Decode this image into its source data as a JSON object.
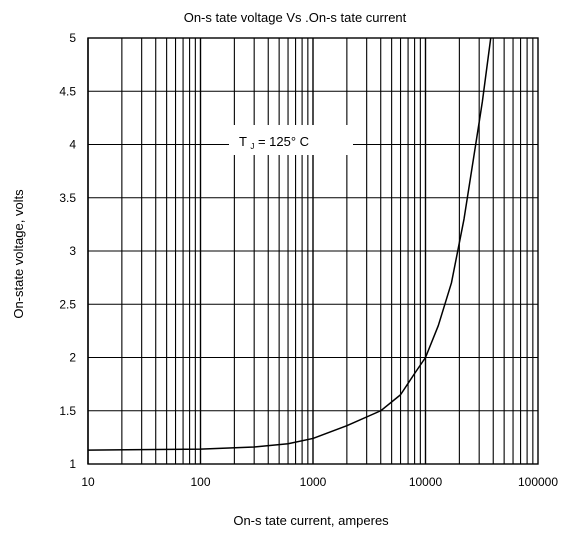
{
  "chart_data": {
    "type": "line",
    "title": "On-s tate voltage  Vs .On-s tate current",
    "xlabel": "On-s tate  current, amperes",
    "ylabel": "On-state voltage, volts",
    "x_scale": "log",
    "xlim": [
      10,
      100000
    ],
    "ylim": [
      1,
      5
    ],
    "x_ticks": [
      10,
      100,
      1000,
      10000,
      100000
    ],
    "x_tick_labels": [
      "10",
      "100",
      "1000",
      "10000",
      "100000"
    ],
    "y_ticks": [
      1,
      1.5,
      2,
      2.5,
      3,
      3.5,
      4,
      4.5,
      5
    ],
    "y_tick_labels": [
      "1",
      "1.5",
      "2",
      "2.5",
      "3",
      "3.5",
      "4",
      "4.5",
      "5"
    ],
    "grid": true,
    "annotation": {
      "main": "T",
      "sub": "J",
      "rest": "= 125°  C"
    },
    "series": [
      {
        "color": "#000000",
        "points": [
          [
            10,
            1.13
          ],
          [
            30,
            1.135
          ],
          [
            100,
            1.14
          ],
          [
            300,
            1.16
          ],
          [
            600,
            1.19
          ],
          [
            1000,
            1.24
          ],
          [
            2000,
            1.36
          ],
          [
            4000,
            1.5
          ],
          [
            6000,
            1.65
          ],
          [
            8000,
            1.85
          ],
          [
            10000,
            2.0
          ],
          [
            13000,
            2.3
          ],
          [
            17000,
            2.7
          ],
          [
            22000,
            3.3
          ],
          [
            27000,
            3.9
          ],
          [
            32000,
            4.4
          ],
          [
            38000,
            5.0
          ]
        ]
      }
    ]
  }
}
